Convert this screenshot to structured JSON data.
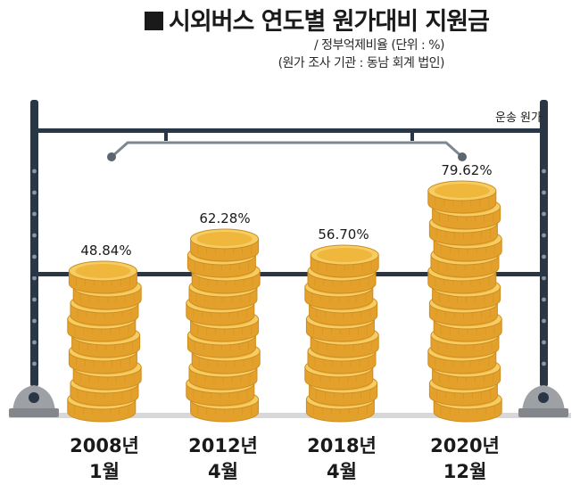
{
  "title": "시외버스 연도별 원가대비 지원금",
  "subtitle_unit": "/ 정부억제비율 (단위 : %)",
  "subtitle_source": "(원가 조사 기관 : 동남 회계 법인)",
  "colors": {
    "frame": "#283646",
    "coin_face": "#f0b73d",
    "coin_side": "#e3a12c",
    "coin_rim": "#f6cd63",
    "coin_shade": "#cf8d20",
    "ground": "#d8d8d8",
    "base": "#9da1a6",
    "text": "#1a1a1a"
  },
  "chart_data": {
    "type": "bar",
    "title": "시외버스 연도별 원가대비 지원금",
    "ylabel": "정부억제비율 (%)",
    "reference_line_label": "운송 원가",
    "ylim": [
      0,
      100
    ],
    "categories": [
      {
        "year": "2008년",
        "month": "1월"
      },
      {
        "year": "2012년",
        "month": "4월"
      },
      {
        "year": "2018년",
        "month": "4월"
      },
      {
        "year": "2020년",
        "month": "12월"
      }
    ],
    "values": [
      48.84,
      62.28,
      56.7,
      79.62
    ],
    "labels": [
      "48.84%",
      "62.28%",
      "56.70%",
      "79.62%"
    ]
  }
}
